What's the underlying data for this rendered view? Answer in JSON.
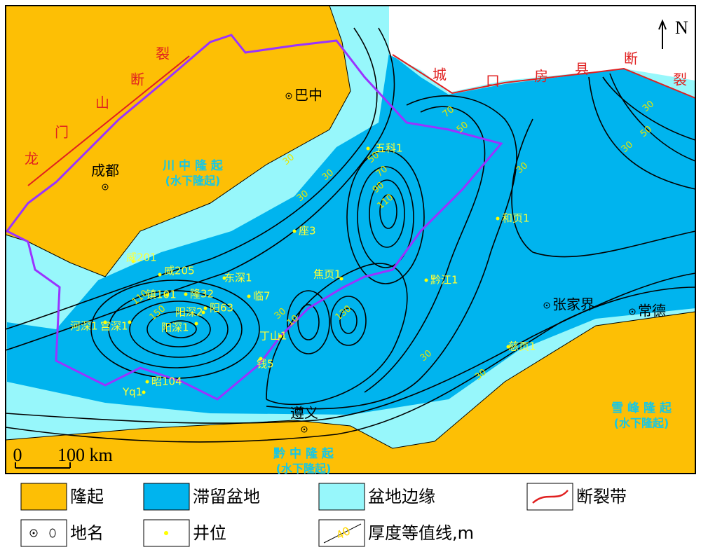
{
  "north": "N",
  "fault_labels": {
    "longmenshan": [
      "龙",
      "门",
      "山",
      "断",
      "裂"
    ],
    "chengkou": [
      "城",
      "口",
      "房",
      "县",
      "断",
      "裂"
    ]
  },
  "places": [
    "巴中",
    "成都",
    "张家界",
    "常德",
    "遵义"
  ],
  "regions": [
    {
      "name": "川 中 隆 起",
      "note": "(水下隆起)"
    },
    {
      "name": "雪 峰 隆 起",
      "note": "(水下隆起)"
    },
    {
      "name": "黔 中 隆 起",
      "note": "(水下隆起)"
    }
  ],
  "wells": [
    "五科1",
    "和页1",
    "座3",
    "东深1",
    "临7",
    "焦页1",
    "黔江1",
    "丁山1",
    "钱5",
    "昭104",
    "Yq1",
    "阳深2",
    "阳63",
    "阳深1",
    "隆32",
    "镇101",
    "威205",
    "宫深1",
    "河深1",
    "威201",
    "慈页1"
  ],
  "contour_labels": [
    70,
    50,
    30,
    50,
    30,
    30,
    50,
    70,
    90,
    110,
    30,
    30,
    30,
    110,
    150,
    30,
    10,
    130,
    30,
    30
  ],
  "scale": {
    "zero": "0",
    "label": "100 km"
  },
  "legend": [
    {
      "label": "隆起"
    },
    {
      "label": "滞留盆地"
    },
    {
      "label": "盆地边缘"
    },
    {
      "label": "断裂带"
    },
    {
      "label": "地名"
    },
    {
      "label": "井位"
    },
    {
      "label": "厚度等值线,m"
    }
  ],
  "legend_sample": 40
}
